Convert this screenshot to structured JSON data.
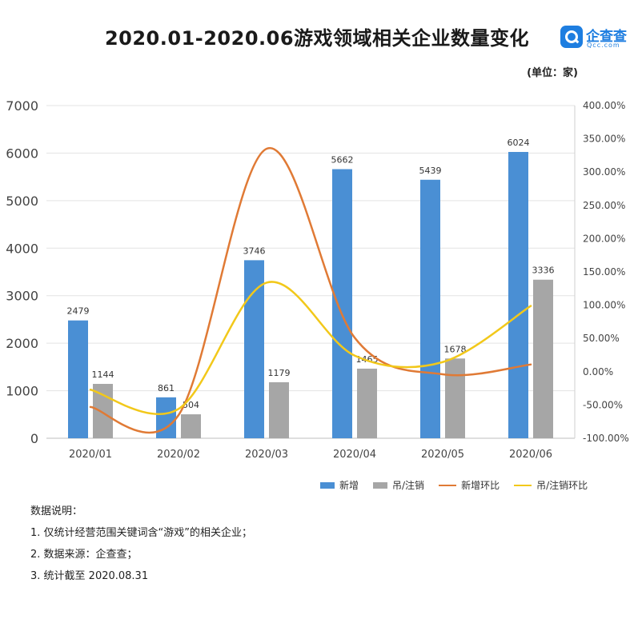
{
  "title": "2020.01-2020.06游戏领域相关企业数量变化",
  "unit_label": "(单位：家)",
  "logo": {
    "name": "企查查",
    "sub": "Qcc.com",
    "color": "#1e7ee0"
  },
  "chart_data": {
    "type": "bar",
    "categories": [
      "2020/01",
      "2020/02",
      "2020/03",
      "2020/04",
      "2020/05",
      "2020/06"
    ],
    "series": [
      {
        "name": "新增",
        "type": "bar",
        "axis": "left",
        "color": "#4a8fd4",
        "values": [
          2479,
          861,
          3746,
          5662,
          5439,
          6024
        ]
      },
      {
        "name": "吊/注销",
        "type": "bar",
        "axis": "left",
        "color": "#a6a6a6",
        "values": [
          1144,
          504,
          1179,
          1465,
          1678,
          3336
        ]
      },
      {
        "name": "新增环比",
        "type": "line",
        "axis": "right",
        "color": "#e07a35",
        "values": [
          -53,
          -65.3,
          335.1,
          51.2,
          -3.9,
          10.8
        ]
      },
      {
        "name": "吊/注销环比",
        "type": "line",
        "axis": "right",
        "color": "#f2c81a",
        "values": [
          -27,
          -55.9,
          133.9,
          24.3,
          14.5,
          98.8
        ]
      }
    ],
    "y_left": {
      "min": 0,
      "max": 7000,
      "ticks": [
        "0",
        "1000",
        "2000",
        "3000",
        "4000",
        "5000",
        "6000",
        "7000"
      ]
    },
    "y_right": {
      "min": -100,
      "max": 400,
      "ticks": [
        "-100.00%",
        "-50.00%",
        "0.00%",
        "50.00%",
        "100.00%",
        "150.00%",
        "200.00%",
        "250.00%",
        "300.00%",
        "350.00%",
        "400.00%"
      ]
    },
    "grid": true,
    "legend_position": "bottom-right"
  },
  "notes": [
    "数据说明：",
    "1. 仅统计经营范围关键词含“游戏”的相关企业；",
    "2. 数据来源：企查查；",
    "3. 统计截至 2020.08.31"
  ]
}
